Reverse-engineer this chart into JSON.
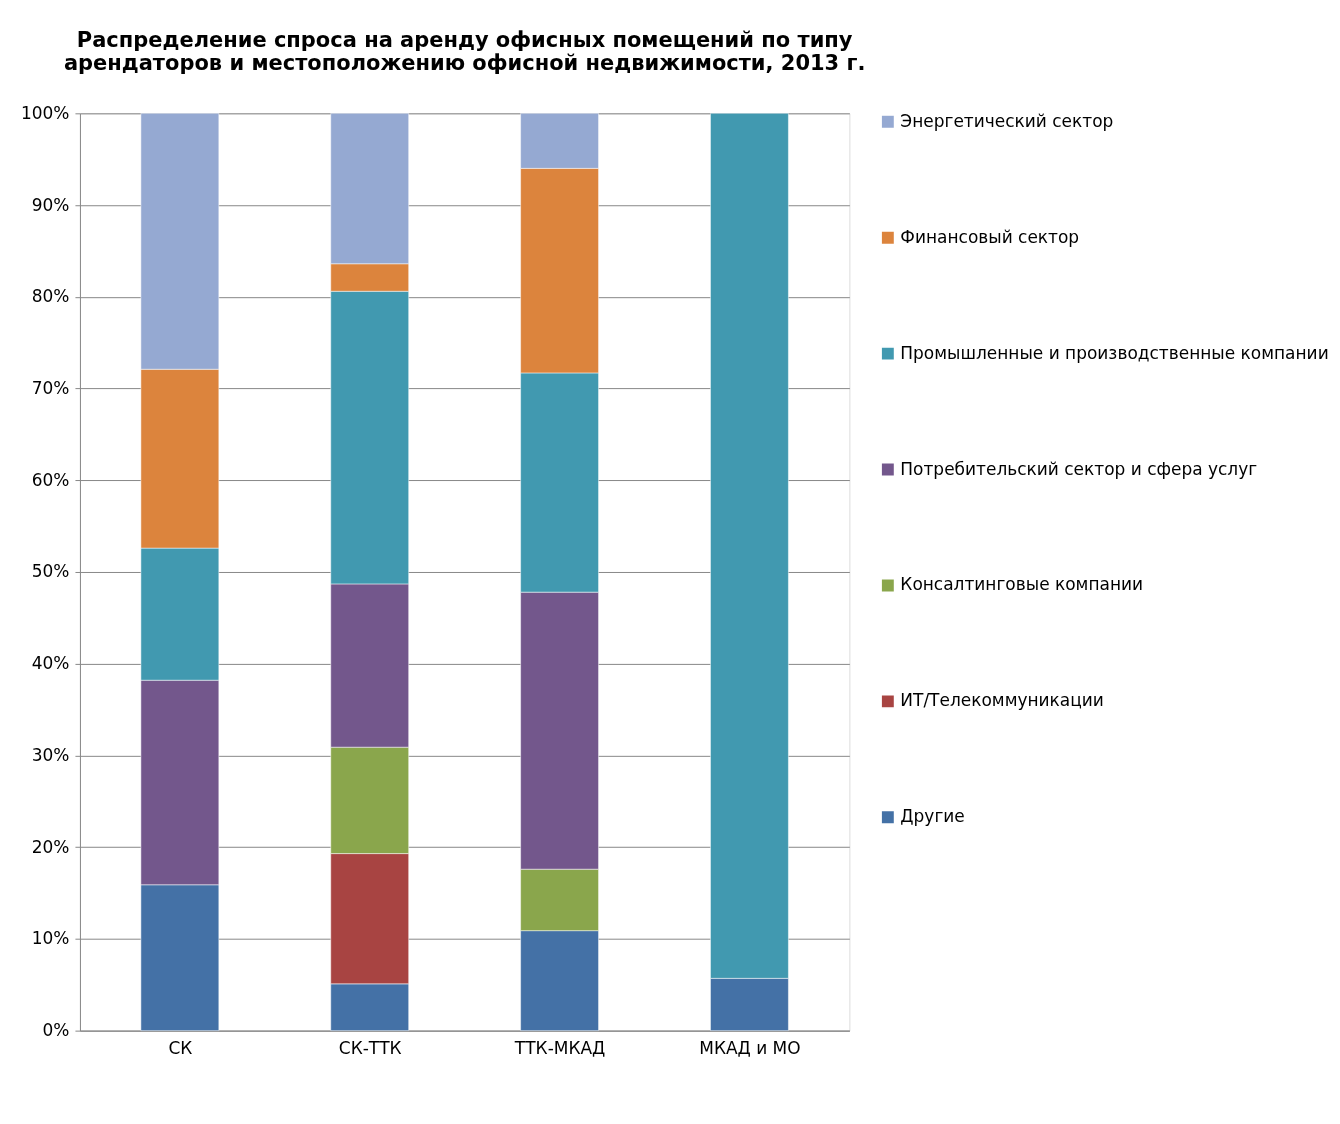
{
  "chart_data": {
    "type": "bar",
    "stacked": true,
    "title": "Распределение спроса на аренду офисных помещений по типу арендаторов и местоположению офисной недвижимости, 2013 г.",
    "categories": [
      "СК",
      "СК-ТТК",
      "ТТК-МКАД",
      "МКАД и МО"
    ],
    "series": [
      {
        "name": "Другие",
        "color": "#4471a6",
        "values": [
          15.9,
          5.1,
          10.9,
          5.7
        ]
      },
      {
        "name": "ИТ/Телекоммуникации",
        "color": "#a84442",
        "values": [
          null,
          14.2,
          null,
          null
        ]
      },
      {
        "name": "Консалтинговые компании",
        "color": "#8aa64c",
        "values": [
          null,
          11.6,
          6.7,
          null
        ]
      },
      {
        "name": "Потребительский сектор и сфера услуг",
        "color": "#73578c",
        "values": [
          22.3,
          17.8,
          30.2,
          null
        ]
      },
      {
        "name": "Промышленные и производственные компании",
        "color": "#4199b0",
        "values": [
          14.4,
          31.9,
          23.9,
          94.3
        ]
      },
      {
        "name": "Финансовый сектор",
        "color": "#dc843d",
        "values": [
          19.5,
          3.0,
          22.3,
          null
        ]
      },
      {
        "name": "Энергетический сектор",
        "color": "#95a9d2",
        "values": [
          27.9,
          16.4,
          6.0,
          null
        ]
      }
    ],
    "ylim": [
      0,
      100
    ],
    "yticks": [
      {
        "value": 0,
        "label": "0%"
      },
      {
        "value": 10,
        "label": "10%"
      },
      {
        "value": 20,
        "label": "20%"
      },
      {
        "value": 30,
        "label": "30%"
      },
      {
        "value": 40,
        "label": "40%"
      },
      {
        "value": 50,
        "label": "50%"
      },
      {
        "value": 60,
        "label": "60%"
      },
      {
        "value": 70,
        "label": "70%"
      },
      {
        "value": 80,
        "label": "80%"
      },
      {
        "value": 90,
        "label": "90%"
      },
      {
        "value": 100,
        "label": "100%"
      }
    ],
    "grid": "y",
    "legend": "right"
  }
}
